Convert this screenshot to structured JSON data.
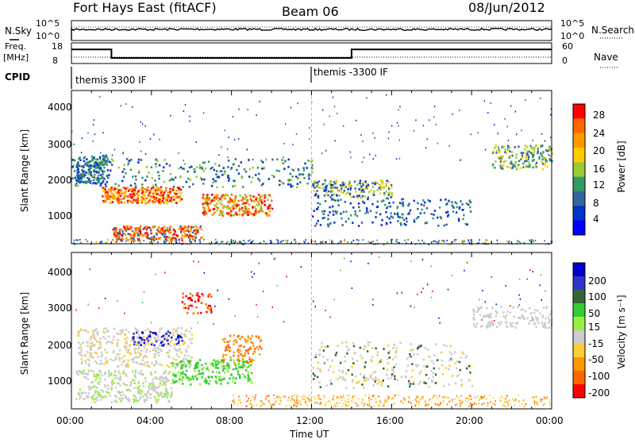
{
  "header": {
    "radar": "Fort Hays East (fitACF)",
    "beam": "Beam 06",
    "date": "08/Jun/2012"
  },
  "noise_panel": {
    "left_label": "N.Sky",
    "left_ticks": [
      "10^5",
      "10^0"
    ],
    "right_ticks": [
      "10^5",
      "10^0"
    ],
    "right_label": "N.Search"
  },
  "freq_panel": {
    "left_label_1": "Freq.",
    "left_label_2": "[MHz]",
    "left_ticks": [
      "18",
      "8"
    ],
    "right_ticks": [
      "60",
      "0"
    ],
    "right_label": "Nave"
  },
  "cpid": {
    "label": "CPID",
    "segments": [
      {
        "text": "themis 3300 IF",
        "start": 0,
        "end": 12
      },
      {
        "text": "themis -3300 IF",
        "start": 12,
        "end": 24
      }
    ]
  },
  "x_axis": {
    "label": "Time UT",
    "ticks": [
      "00:00",
      "04:00",
      "08:00",
      "12:00",
      "16:00",
      "20:00",
      "00:00"
    ],
    "range_hours": [
      0,
      24
    ]
  },
  "power_panel": {
    "ylabel": "Slant Range [km]",
    "yticks": [
      "4000",
      "3000",
      "2000",
      "1000"
    ],
    "colorbar_label": "Power [dB]",
    "colorbar_ticks": [
      "28",
      "24",
      "20",
      "16",
      "12",
      "8",
      "4"
    ],
    "colorbar_colors": [
      "#ff0000",
      "#ff6600",
      "#ff9900",
      "#ffcc00",
      "#99cc33",
      "#339966",
      "#336699",
      "#0033cc",
      "#0000ff"
    ]
  },
  "velocity_panel": {
    "ylabel": "Slant Range [km]",
    "yticks": [
      "4000",
      "3000",
      "2000",
      "1000"
    ],
    "colorbar_label": "Velocity [m s⁻¹]",
    "colorbar_ticks": [
      "200",
      "100",
      "50",
      "15",
      "-15",
      "-50",
      "-100",
      "-200"
    ],
    "colorbar_colors": [
      "#0000cc",
      "#3333cc",
      "#336633",
      "#33cc33",
      "#99ee44",
      "#cccccc",
      "#ffcc33",
      "#ff9900",
      "#ff6600",
      "#ff0000"
    ]
  },
  "chart_data": [
    {
      "type": "line",
      "title": "",
      "xlabel": "",
      "ylabel": "N.Sky",
      "x": [
        0,
        2,
        4,
        6,
        8,
        10,
        12,
        14,
        16,
        18,
        20,
        22,
        24
      ],
      "series": [
        {
          "values": [
            1000,
            1200,
            1100,
            1300,
            1250,
            1200,
            1100,
            1150,
            1200,
            1100,
            1250,
            1200,
            1100
          ]
        }
      ],
      "ylim_log10": [
        0,
        5
      ]
    },
    {
      "type": "line",
      "title": "",
      "ylabel": "Freq. [MHz]",
      "x": [
        0,
        2,
        2,
        14,
        14,
        24
      ],
      "series": [
        {
          "values": [
            15,
            15,
            10.5,
            10.5,
            15,
            15
          ]
        }
      ],
      "ylim": [
        8,
        18
      ]
    },
    {
      "type": "heatmap",
      "title": "",
      "xlabel": "Time UT",
      "ylabel": "Slant Range [km]",
      "xlim": [
        0,
        24
      ],
      "ylim": [
        180,
        4500
      ],
      "colorbar": "Power [dB]",
      "crange": [
        0,
        30
      ]
    },
    {
      "type": "heatmap",
      "title": "",
      "xlabel": "Time UT",
      "ylabel": "Slant Range [km]",
      "xlim": [
        0,
        24
      ],
      "ylim": [
        180,
        4500
      ],
      "colorbar": "Velocity [m s⁻¹]",
      "crange": [
        -250,
        250
      ]
    }
  ]
}
